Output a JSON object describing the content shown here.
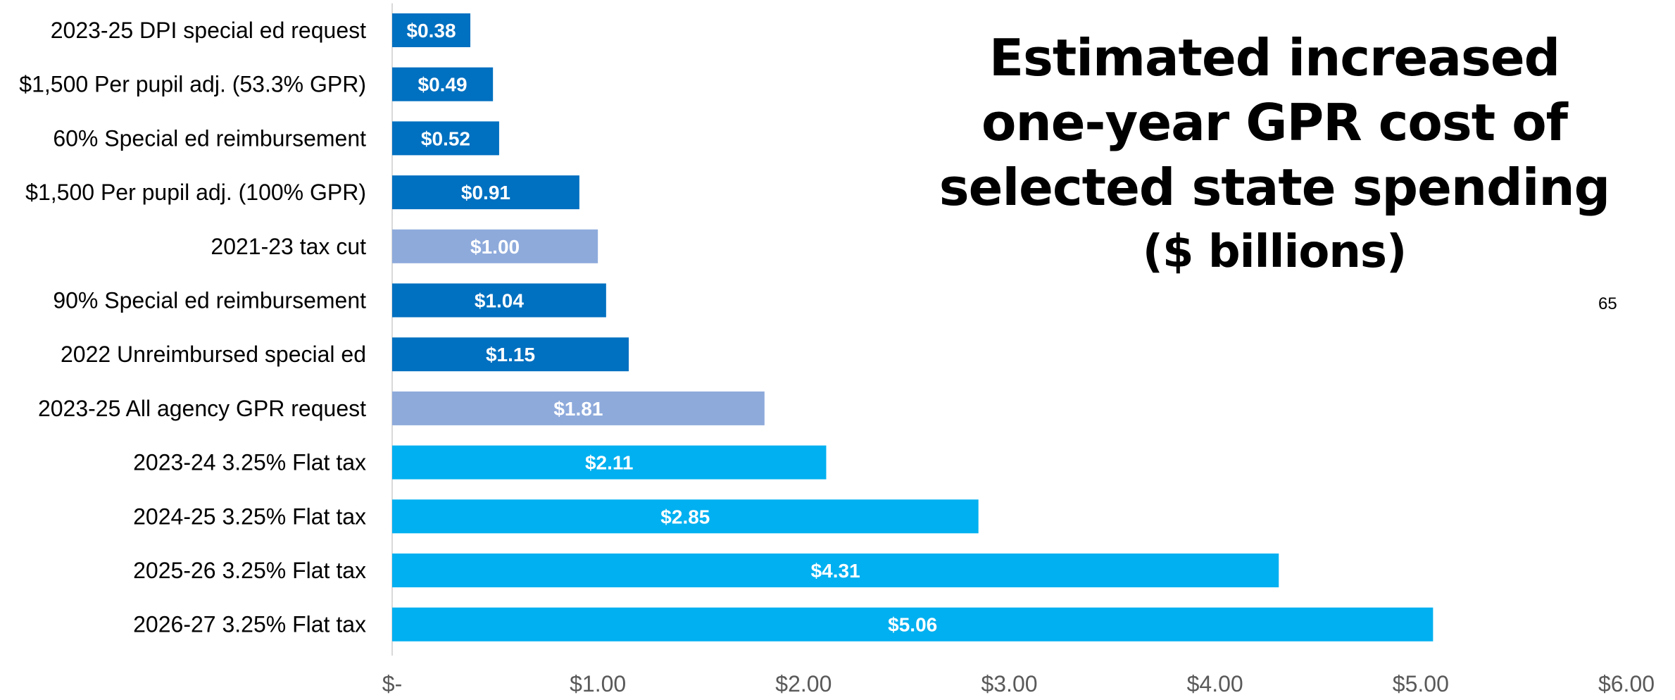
{
  "chart_data": {
    "type": "bar",
    "orientation": "horizontal",
    "title_lines": [
      "Estimated increased",
      "one-year GPR cost of",
      "selected state spending"
    ],
    "title_unit": "($ billions)",
    "categories": [
      "2023-25 DPI special ed request",
      "$1,500 Per pupil adj. (53.3% GPR)",
      "60% Special ed reimbursement",
      "$1,500 Per pupil adj. (100% GPR)",
      "2021-23 tax cut",
      "90% Special ed reimbursement",
      "2022 Unreimbursed special ed",
      "2023-25 All agency GPR request",
      "2023-24 3.25% Flat tax",
      "2024-25 3.25% Flat tax",
      "2025-26 3.25% Flat tax",
      "2026-27 3.25% Flat tax"
    ],
    "values": [
      0.38,
      0.49,
      0.52,
      0.91,
      1.0,
      1.04,
      1.15,
      1.81,
      2.11,
      2.85,
      4.31,
      5.06
    ],
    "data_labels": [
      "$0.38",
      "$0.49",
      "$0.52",
      "$0.91",
      "$1.00",
      "$1.04",
      "$1.15",
      "$1.81",
      "$2.11",
      "$2.85",
      "$4.31",
      "$5.06"
    ],
    "bar_colors": [
      "#0070C0",
      "#0070C0",
      "#0070C0",
      "#0070C0",
      "#8EAADB",
      "#0070C0",
      "#0070C0",
      "#8EAADB",
      "#00B0F0",
      "#00B0F0",
      "#00B0F0",
      "#00B0F0"
    ],
    "xlim": [
      0,
      6
    ],
    "x_ticks": [
      0,
      1,
      2,
      3,
      4,
      5,
      6
    ],
    "x_tick_labels": [
      "$-",
      "$1.00",
      "$2.00",
      "$3.00",
      "$4.00",
      "$5.00",
      "$6.00"
    ],
    "grid": false,
    "legend": "none"
  },
  "page_number": "65",
  "colors": {
    "axis_line": "#D9D9D9",
    "tick_text": "#595959"
  }
}
